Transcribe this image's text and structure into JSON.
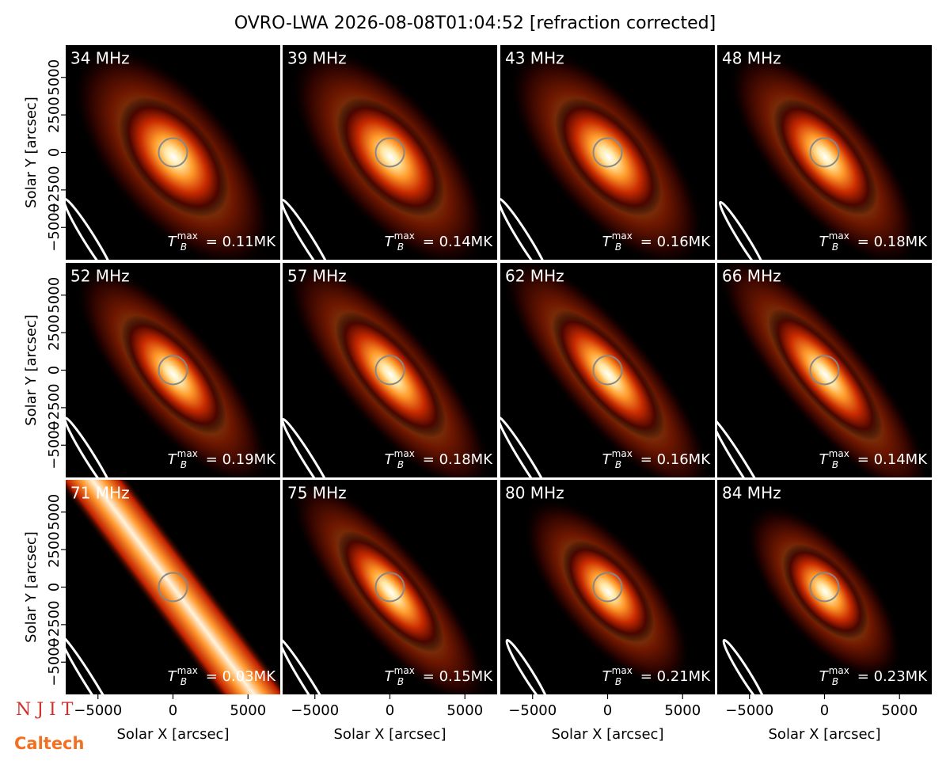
{
  "chart_data": {
    "type": "image",
    "title": "OVRO-LWA 2026-08-08T01:04:52 [refraction corrected]",
    "xlabel": "Solar X [arcsec]",
    "ylabel": "Solar Y [arcsec]",
    "xlim": [
      -7150,
      7150
    ],
    "ylim": [
      -7150,
      7150
    ],
    "xticks": [
      {
        "value": -5000,
        "label": "−5000"
      },
      0,
      5000
    ],
    "yticks": [
      {
        "value": -5000,
        "label": "−5000"
      },
      {
        "value": -2500,
        "label": "−2500"
      },
      0,
      2500,
      5000
    ],
    "tb_symbol": "T",
    "tb_sub": "B",
    "tb_sup": "max",
    "panels": [
      {
        "label": "34 MHz",
        "annotation": " = 0.11MK"
      },
      {
        "label": "39 MHz",
        "annotation": " = 0.14MK"
      },
      {
        "label": "43 MHz",
        "annotation": " = 0.16MK"
      },
      {
        "label": "48 MHz",
        "annotation": " = 0.18MK"
      },
      {
        "label": "52 MHz",
        "annotation": " = 0.19MK"
      },
      {
        "label": "57 MHz",
        "annotation": " = 0.18MK"
      },
      {
        "label": "62 MHz",
        "annotation": " = 0.16MK"
      },
      {
        "label": "66 MHz",
        "annotation": " = 0.14MK"
      },
      {
        "label": "71 MHz",
        "annotation": " = 0.03MK"
      },
      {
        "label": "75 MHz",
        "annotation": " = 0.15MK"
      },
      {
        "label": "80 MHz",
        "annotation": " = 0.21MK"
      },
      {
        "label": "84 MHz",
        "annotation": " = 0.23MK"
      }
    ]
  },
  "logos": {
    "njit": "N J I T",
    "caltech": "Caltech"
  }
}
